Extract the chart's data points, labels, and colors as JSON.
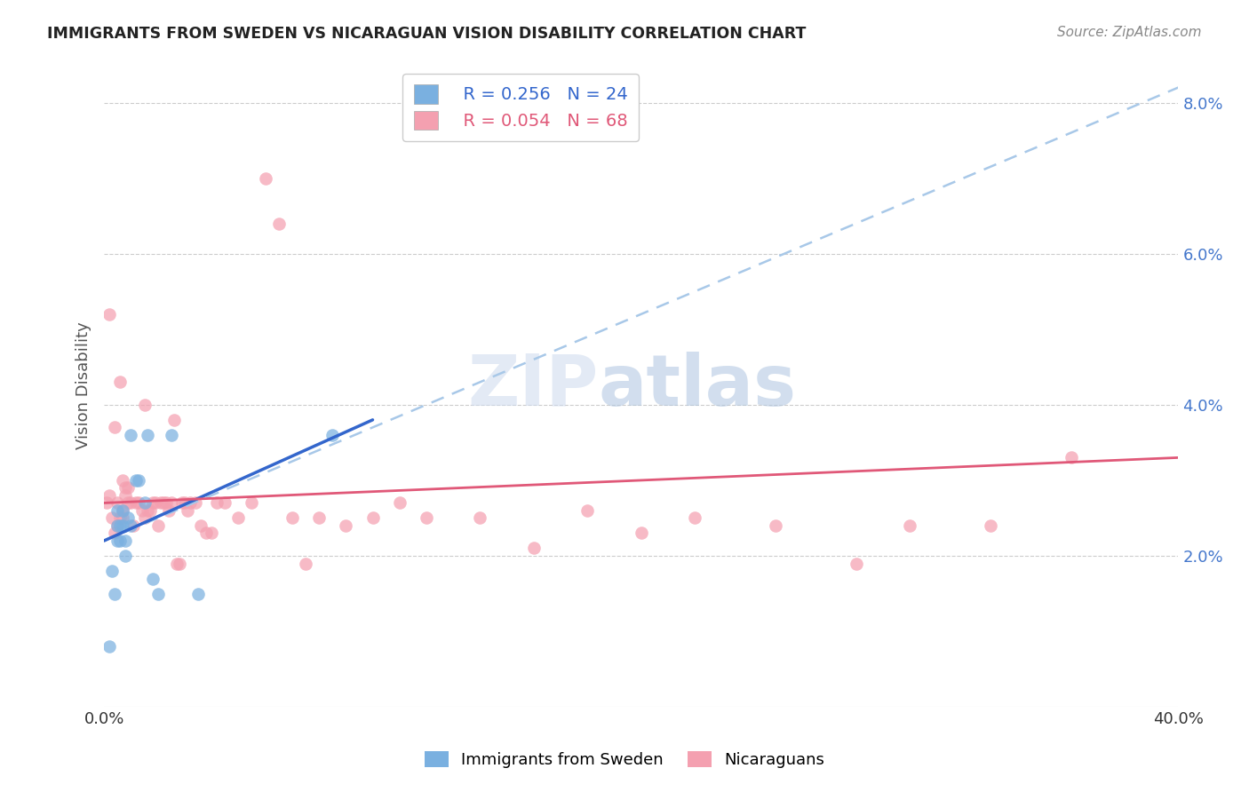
{
  "title": "IMMIGRANTS FROM SWEDEN VS NICARAGUAN VISION DISABILITY CORRELATION CHART",
  "source": "Source: ZipAtlas.com",
  "ylabel": "Vision Disability",
  "xlim": [
    0.0,
    0.4
  ],
  "ylim": [
    0.0,
    0.085
  ],
  "yticks": [
    0.02,
    0.04,
    0.06,
    0.08
  ],
  "ytick_labels": [
    "2.0%",
    "4.0%",
    "6.0%",
    "8.0%"
  ],
  "xticks": [
    0.0,
    0.1,
    0.2,
    0.3,
    0.4
  ],
  "xtick_labels": [
    "0.0%",
    "",
    "",
    "",
    "40.0%"
  ],
  "legend_blue_r": "R = 0.256",
  "legend_blue_n": "N = 24",
  "legend_pink_r": "R = 0.054",
  "legend_pink_n": "N = 68",
  "blue_color": "#7ab0e0",
  "pink_color": "#f4a0b0",
  "blue_line_color": "#3366cc",
  "pink_line_color": "#e05878",
  "dashed_line_color": "#a8c8e8",
  "watermark_zip": "ZIP",
  "watermark_atlas": "atlas",
  "sweden_x": [
    0.002,
    0.003,
    0.004,
    0.005,
    0.005,
    0.005,
    0.006,
    0.006,
    0.007,
    0.007,
    0.008,
    0.008,
    0.009,
    0.01,
    0.01,
    0.012,
    0.013,
    0.015,
    0.016,
    0.018,
    0.02,
    0.025,
    0.035,
    0.085
  ],
  "sweden_y": [
    0.008,
    0.018,
    0.015,
    0.024,
    0.026,
    0.022,
    0.022,
    0.024,
    0.024,
    0.026,
    0.022,
    0.02,
    0.025,
    0.024,
    0.036,
    0.03,
    0.03,
    0.027,
    0.036,
    0.017,
    0.015,
    0.036,
    0.015,
    0.036
  ],
  "nicaragua_x": [
    0.001,
    0.002,
    0.002,
    0.003,
    0.004,
    0.004,
    0.005,
    0.005,
    0.006,
    0.006,
    0.007,
    0.007,
    0.007,
    0.008,
    0.008,
    0.009,
    0.009,
    0.01,
    0.011,
    0.012,
    0.013,
    0.014,
    0.015,
    0.015,
    0.016,
    0.017,
    0.018,
    0.019,
    0.02,
    0.021,
    0.022,
    0.023,
    0.024,
    0.025,
    0.026,
    0.027,
    0.028,
    0.029,
    0.03,
    0.031,
    0.032,
    0.034,
    0.036,
    0.038,
    0.04,
    0.042,
    0.045,
    0.05,
    0.055,
    0.06,
    0.065,
    0.07,
    0.075,
    0.08,
    0.09,
    0.1,
    0.11,
    0.12,
    0.14,
    0.16,
    0.18,
    0.2,
    0.22,
    0.25,
    0.28,
    0.3,
    0.33,
    0.36
  ],
  "nicaragua_y": [
    0.027,
    0.028,
    0.052,
    0.025,
    0.023,
    0.037,
    0.024,
    0.027,
    0.025,
    0.043,
    0.026,
    0.03,
    0.025,
    0.028,
    0.029,
    0.027,
    0.029,
    0.027,
    0.024,
    0.027,
    0.027,
    0.026,
    0.025,
    0.04,
    0.026,
    0.026,
    0.027,
    0.027,
    0.024,
    0.027,
    0.027,
    0.027,
    0.026,
    0.027,
    0.038,
    0.019,
    0.019,
    0.027,
    0.027,
    0.026,
    0.027,
    0.027,
    0.024,
    0.023,
    0.023,
    0.027,
    0.027,
    0.025,
    0.027,
    0.07,
    0.064,
    0.025,
    0.019,
    0.025,
    0.024,
    0.025,
    0.027,
    0.025,
    0.025,
    0.021,
    0.026,
    0.023,
    0.025,
    0.024,
    0.019,
    0.024,
    0.024,
    0.033
  ],
  "blue_line_x": [
    0.0,
    0.1
  ],
  "blue_line_y": [
    0.022,
    0.038
  ],
  "dashed_line_x": [
    0.1,
    0.4
  ],
  "dashed_line_y": [
    0.038,
    0.082
  ],
  "pink_line_x": [
    0.0,
    0.4
  ],
  "pink_line_y": [
    0.027,
    0.033
  ]
}
